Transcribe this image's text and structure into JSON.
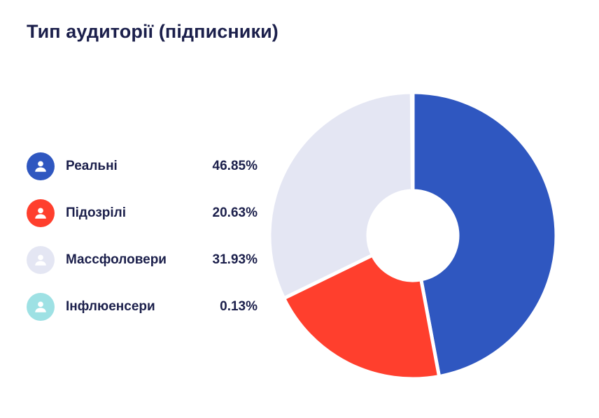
{
  "chart_data": {
    "type": "pie",
    "variant": "donut",
    "title": "Тип аудиторії (підписники)",
    "categories": [
      "Реальні",
      "Підозрілі",
      "Массфоловери",
      "Інфлюенсери"
    ],
    "values": [
      46.85,
      20.63,
      31.93,
      0.13
    ],
    "value_labels": [
      "46.85%",
      "20.63%",
      "31.93%",
      "0.13%"
    ],
    "colors": [
      "#2f57c0",
      "#ff3f2d",
      "#e4e6f3",
      "#9ee1e4"
    ],
    "legend_position": "left"
  },
  "icon": "user-icon"
}
